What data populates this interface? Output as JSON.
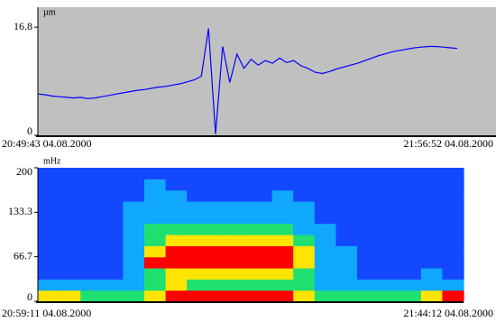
{
  "chart_data": [
    {
      "type": "line",
      "y_label": "µm",
      "x_start_label": "20:49:43 04.08.2000",
      "x_end_label": "21:56:52 04.08.2000",
      "color": "#0000ff",
      "background": "#c0c0c0",
      "ylim": [
        0,
        19.9
      ],
      "yticks": [
        0,
        16.8
      ],
      "values": [
        6.4,
        6.3,
        6.1,
        6.0,
        5.9,
        5.8,
        5.9,
        5.7,
        5.8,
        6.0,
        6.2,
        6.4,
        6.6,
        6.8,
        7.0,
        7.1,
        7.3,
        7.5,
        7.6,
        7.8,
        8.0,
        8.3,
        8.6,
        9.2,
        16.6,
        0.2,
        13.8,
        8.2,
        12.6,
        10.4,
        11.8,
        10.9,
        11.6,
        11.2,
        12.0,
        11.3,
        11.6,
        10.8,
        10.4,
        9.8,
        9.6,
        9.9,
        10.3,
        10.6,
        10.9,
        11.2,
        11.6,
        12.0,
        12.4,
        12.7,
        13.0,
        13.2,
        13.4,
        13.6,
        13.7,
        13.8,
        13.8,
        13.7,
        13.6,
        13.5
      ]
    },
    {
      "type": "heatmap",
      "y_label": "mHz",
      "x_start_label": "20:59:11 04.08.2000",
      "x_end_label": "21:44:12 04.08.2000",
      "colormap": [
        "#1448ff",
        "#10a8ff",
        "#20e070",
        "#ffe400",
        "#ff0000"
      ],
      "ylim": [
        0,
        200
      ],
      "yticks": [
        0,
        66.7,
        133.3,
        200
      ],
      "values": [
        [
          3,
          3,
          2,
          2,
          2,
          3,
          4,
          4,
          4,
          4,
          4,
          4,
          3,
          2,
          2,
          2,
          2,
          2,
          3,
          4
        ],
        [
          1,
          1,
          1,
          1,
          1,
          2,
          3,
          2,
          2,
          2,
          2,
          2,
          2,
          1,
          1,
          1,
          1,
          1,
          1,
          1
        ],
        [
          0,
          0,
          0,
          0,
          1,
          2,
          3,
          3,
          3,
          3,
          3,
          3,
          2,
          1,
          1,
          0,
          0,
          0,
          1,
          0
        ],
        [
          0,
          0,
          0,
          0,
          1,
          4,
          4,
          4,
          4,
          4,
          4,
          4,
          3,
          1,
          1,
          0,
          0,
          0,
          0,
          0
        ],
        [
          0,
          0,
          0,
          0,
          1,
          3,
          4,
          4,
          4,
          4,
          4,
          4,
          3,
          1,
          1,
          0,
          0,
          0,
          0,
          0
        ],
        [
          0,
          0,
          0,
          0,
          1,
          2,
          3,
          3,
          3,
          3,
          3,
          3,
          2,
          1,
          0,
          0,
          0,
          0,
          0,
          0
        ],
        [
          0,
          0,
          0,
          0,
          1,
          2,
          2,
          2,
          2,
          2,
          2,
          2,
          1,
          1,
          0,
          0,
          0,
          0,
          0,
          0
        ],
        [
          0,
          0,
          0,
          0,
          1,
          1,
          1,
          1,
          1,
          1,
          1,
          1,
          1,
          0,
          0,
          0,
          0,
          0,
          0,
          0
        ],
        [
          0,
          0,
          0,
          0,
          1,
          1,
          1,
          1,
          1,
          1,
          1,
          1,
          1,
          0,
          0,
          0,
          0,
          0,
          0,
          0
        ],
        [
          0,
          0,
          0,
          0,
          0,
          1,
          1,
          0,
          0,
          0,
          0,
          1,
          0,
          0,
          0,
          0,
          0,
          0,
          0,
          0
        ],
        [
          0,
          0,
          0,
          0,
          0,
          1,
          0,
          0,
          0,
          0,
          0,
          0,
          0,
          0,
          0,
          0,
          0,
          0,
          0,
          0
        ],
        [
          0,
          0,
          0,
          0,
          0,
          0,
          0,
          0,
          0,
          0,
          0,
          0,
          0,
          0,
          0,
          0,
          0,
          0,
          0,
          0
        ]
      ]
    }
  ]
}
